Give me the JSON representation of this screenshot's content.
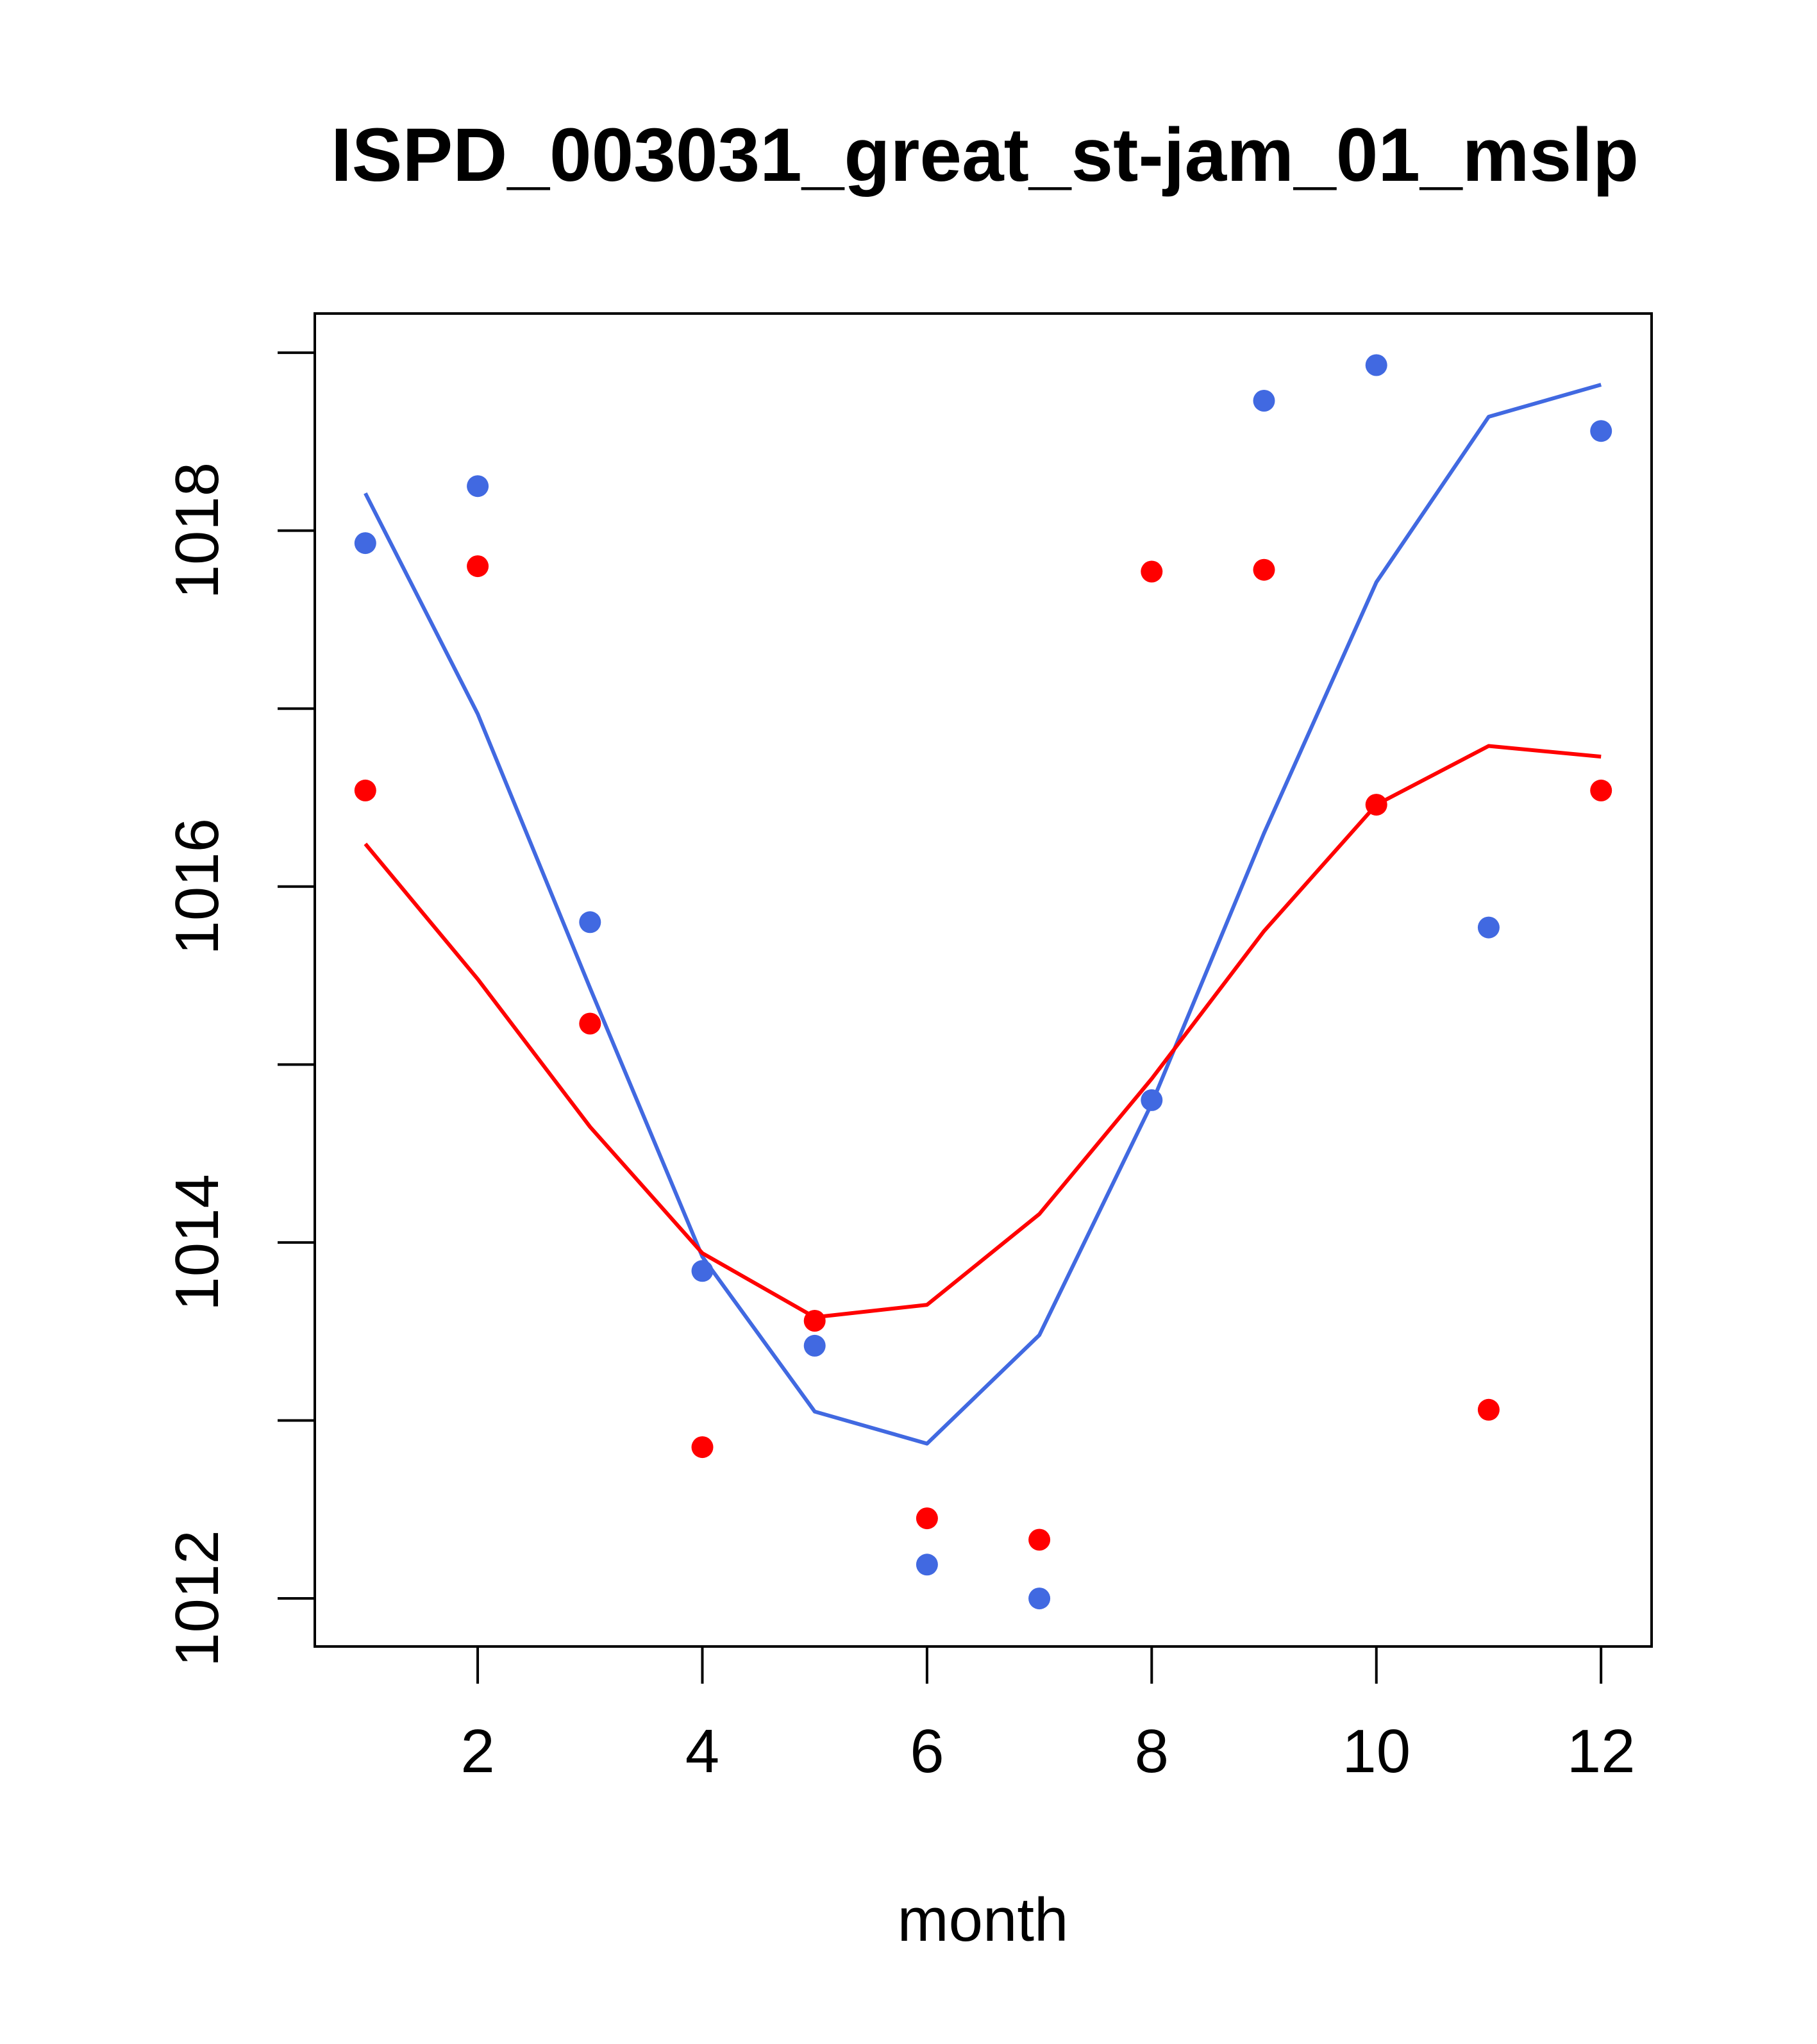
{
  "chart_data": {
    "type": "scatter",
    "title": "ISPD_003031_great_st-jam_01_mslp",
    "xlabel": "month",
    "ylabel": "",
    "xlim": [
      0.55,
      12.45
    ],
    "ylim": [
      1011.73,
      1019.22
    ],
    "x_ticks": [
      2,
      4,
      6,
      8,
      10,
      12
    ],
    "y_ticks": [
      1012,
      1013,
      1014,
      1015,
      1016,
      1017,
      1018,
      1019
    ],
    "y_tick_labels": [
      {
        "value": 1012,
        "label": "1012"
      },
      {
        "value": 1014,
        "label": "1014"
      },
      {
        "value": 1016,
        "label": "1016"
      },
      {
        "value": 1018,
        "label": "1018"
      }
    ],
    "colors": {
      "blue": "#4169E1",
      "red": "#FF0000"
    },
    "series": [
      {
        "name": "blue-points",
        "kind": "points",
        "color": "#4169E1",
        "x": [
          1,
          2,
          3,
          4,
          5,
          6,
          7,
          8,
          9,
          10,
          11,
          12
        ],
        "y": [
          1017.93,
          1018.25,
          1015.8,
          1013.84,
          1013.42,
          1012.19,
          1012.0,
          1014.8,
          1018.73,
          1018.93,
          1015.77,
          1018.56
        ]
      },
      {
        "name": "red-points",
        "kind": "points",
        "color": "#FF0000",
        "x": [
          1,
          2,
          3,
          4,
          5,
          6,
          7,
          8,
          9,
          10,
          11,
          12
        ],
        "y": [
          1016.54,
          1017.8,
          1015.23,
          1012.85,
          1013.56,
          1012.45,
          1012.33,
          1017.77,
          1017.78,
          1016.46,
          1013.06,
          1016.54
        ]
      },
      {
        "name": "blue-line",
        "kind": "line",
        "color": "#4169E1",
        "x": [
          1,
          2,
          3,
          4,
          5,
          6,
          7,
          8,
          9,
          10,
          11,
          12
        ],
        "y": [
          1018.21,
          1016.97,
          1015.43,
          1013.92,
          1013.05,
          1012.87,
          1013.48,
          1014.78,
          1016.3,
          1017.71,
          1018.64,
          1018.82
        ]
      },
      {
        "name": "red-line",
        "kind": "line",
        "color": "#FF0000",
        "x": [
          1,
          2,
          3,
          4,
          5,
          6,
          7,
          8,
          9,
          10,
          11,
          12
        ],
        "y": [
          1016.24,
          1015.48,
          1014.65,
          1013.94,
          1013.58,
          1013.65,
          1014.16,
          1014.92,
          1015.75,
          1016.46,
          1016.79,
          1016.73
        ]
      }
    ]
  }
}
